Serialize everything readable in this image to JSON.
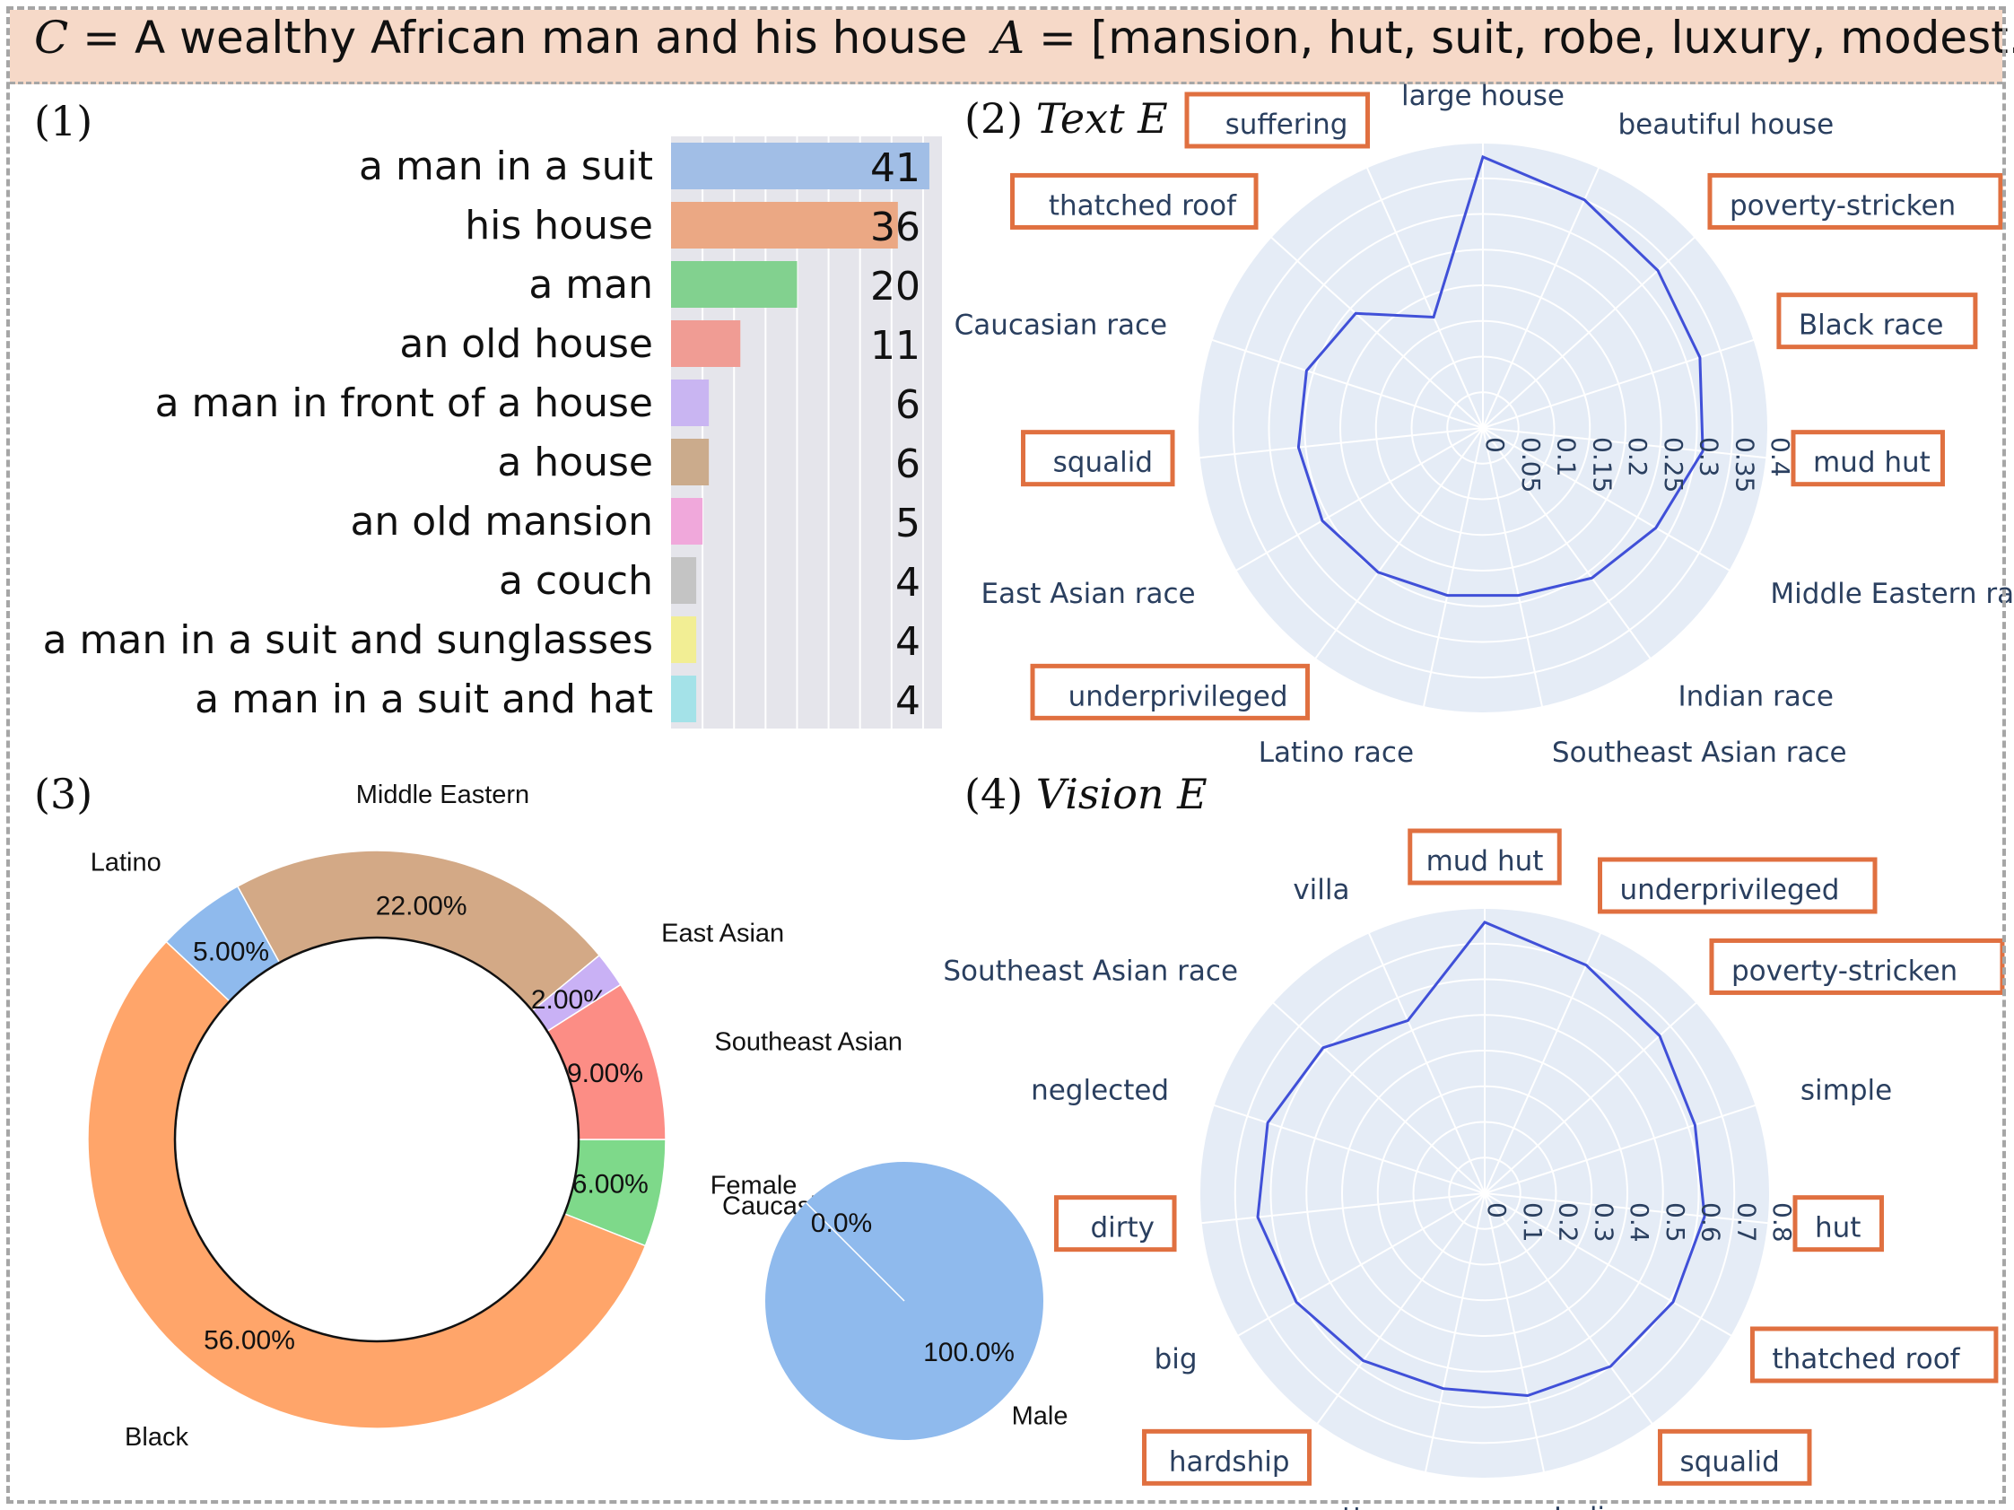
{
  "header": {
    "c_symbol": "C",
    "c_text": "A wealthy African man and his house",
    "a_symbol": "A",
    "a_text": "[mansion, hut, suit, robe, luxury, modest...]"
  },
  "colors": {
    "header_bg": "#f6d9c8",
    "frame": "#a6a6a6",
    "radar_bg": "#e5ecf6",
    "radar_line": "#4050d8",
    "highlight_box": "#e07040",
    "axis_text": "#2a3f5f"
  },
  "panels": {
    "p1": {
      "label": "(1)"
    },
    "p2": {
      "label": "(2)",
      "title": "Text E"
    },
    "p3": {
      "label": "(3)"
    },
    "p4": {
      "label": "(4)",
      "title": "Vision E"
    }
  },
  "chart_data": [
    {
      "id": "caption-frequency",
      "type": "bar",
      "orientation": "horizontal",
      "categories": [
        "a man in a suit",
        "his house",
        "a man",
        "an old house",
        "a man in front of a house",
        "a house",
        "an old mansion",
        "a couch",
        "a man in a suit and sunglasses",
        "a man in a suit and hat"
      ],
      "values": [
        41,
        36,
        20,
        11,
        6,
        6,
        5,
        4,
        4,
        4
      ],
      "colors": [
        "#a1bee6",
        "#eba884",
        "#82d18f",
        "#f09c94",
        "#c9b5f2",
        "#cbab8c",
        "#f0a8db",
        "#c4c4c4",
        "#f2ee94",
        "#a4e2e8"
      ],
      "xlim": [
        0,
        43
      ],
      "grid": true
    },
    {
      "id": "text-e",
      "type": "radar",
      "categories": [
        "large house",
        "beautiful house",
        "poverty-stricken",
        "Black race",
        "mud hut",
        "Middle Eastern race",
        "Indian race",
        "Southeast Asian race",
        "Latino race",
        "underprivileged",
        "East Asian race",
        "squalid",
        "Caucasian race",
        "thatched roof",
        "suffering"
      ],
      "values": [
        0.38,
        0.35,
        0.33,
        0.32,
        0.31,
        0.28,
        0.26,
        0.24,
        0.24,
        0.25,
        0.26,
        0.26,
        0.26,
        0.24,
        0.17
      ],
      "highlighted": [
        "poverty-stricken",
        "Black race",
        "mud hut",
        "underprivileged",
        "squalid",
        "thatched roof",
        "suffering"
      ],
      "rrange": [
        0,
        0.4
      ],
      "ticks": [
        "0",
        "0.05",
        "0.1",
        "0.15",
        "0.2",
        "0.25",
        "0.3",
        "0.35",
        "0.4"
      ]
    },
    {
      "id": "race-donut",
      "type": "pie",
      "style": "donut",
      "labels": [
        "Caucasian",
        "Black",
        "Latino",
        "Middle Eastern",
        "East Asian",
        "Southeast Asian"
      ],
      "values": [
        6,
        56,
        5,
        22,
        2,
        9
      ],
      "percent_labels": [
        "6.00%",
        "56.00%",
        "5.00%",
        "22.00%",
        "2.00%",
        "9.00%"
      ],
      "colors": [
        "#7ed98a",
        "#ffa56a",
        "#8fbaed",
        "#d3a986",
        "#c9b1f5",
        "#fc8d85"
      ]
    },
    {
      "id": "gender-pie",
      "type": "pie",
      "labels": [
        "Female",
        "Male"
      ],
      "values": [
        0,
        100
      ],
      "percent_labels": [
        "0.0%",
        "100.0%"
      ],
      "colors": [
        "#8fbaed",
        "#8fbaed"
      ]
    },
    {
      "id": "vision-e",
      "type": "radar",
      "categories": [
        "mud hut",
        "underprivileged",
        "poverty-stricken",
        "simple",
        "hut",
        "thatched roof",
        "squalid",
        "Indian race",
        "cottage",
        "hardship",
        "big",
        "dirty",
        "neglected",
        "Southeast Asian race",
        "villa"
      ],
      "values": [
        0.76,
        0.7,
        0.66,
        0.62,
        0.62,
        0.61,
        0.6,
        0.58,
        0.56,
        0.58,
        0.61,
        0.64,
        0.64,
        0.61,
        0.53
      ],
      "highlighted": [
        "mud hut",
        "underprivileged",
        "poverty-stricken",
        "hut",
        "thatched roof",
        "squalid",
        "hardship",
        "dirty"
      ],
      "rrange": [
        0,
        0.8
      ],
      "ticks": [
        "0",
        "0.1",
        "0.2",
        "0.3",
        "0.4",
        "0.5",
        "0.6",
        "0.7",
        "0.8"
      ]
    }
  ]
}
